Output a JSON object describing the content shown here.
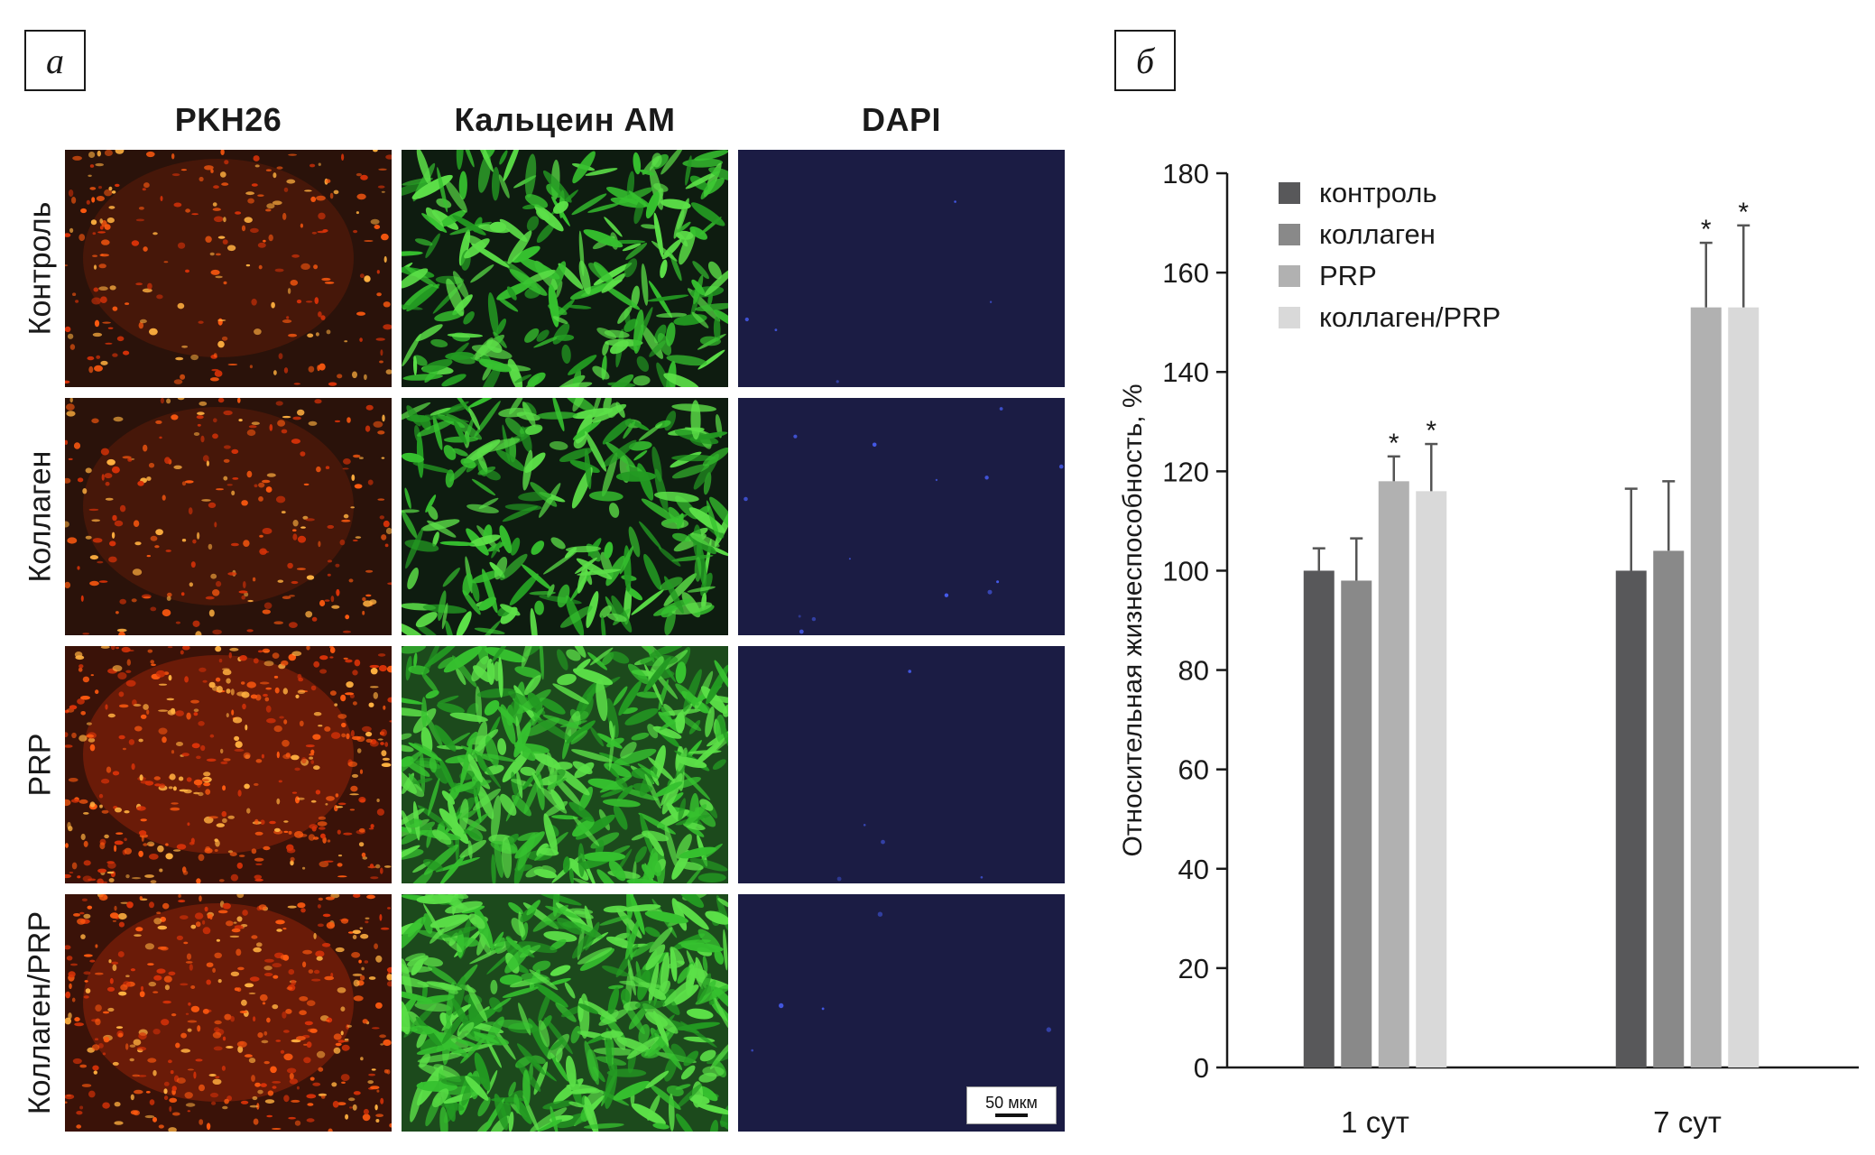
{
  "panel_a": {
    "letter": "а",
    "columns": [
      "PKH26",
      "Кальцеин АМ",
      "DAPI"
    ],
    "rows": [
      "Контроль",
      "Коллаген",
      "PRP",
      "Коллаген/PRP"
    ],
    "scale_bar": "50 мкм",
    "stain_colors": {
      "PKH26": "#ff4a12",
      "Кальцеин АМ": "#33c43a",
      "DAPI": "#1d1e4a"
    }
  },
  "panel_b": {
    "letter": "б"
  },
  "chart_data": {
    "type": "bar",
    "categories": [
      "1 сут",
      "7 сут"
    ],
    "ylabel": "Относительная жизнеспособность, %",
    "xlabel": "",
    "ylim": [
      0,
      180
    ],
    "yticks": [
      0,
      20,
      40,
      60,
      80,
      100,
      120,
      140,
      160,
      180
    ],
    "legend_position": "top-left",
    "series": [
      {
        "name": "контроль",
        "color": "#58585a",
        "values": [
          100,
          100
        ],
        "errors": [
          4.5,
          16.5
        ],
        "significant": [
          false,
          false
        ]
      },
      {
        "name": "коллаген",
        "color": "#898989",
        "values": [
          98,
          104
        ],
        "errors": [
          8.5,
          14
        ],
        "significant": [
          false,
          false
        ]
      },
      {
        "name": "PRP",
        "color": "#b1b1b1",
        "values": [
          118,
          153
        ],
        "errors": [
          5,
          13
        ],
        "significant": [
          true,
          true
        ]
      },
      {
        "name": "коллаген/PRP",
        "color": "#d9d9d9",
        "values": [
          116,
          153
        ],
        "errors": [
          9.5,
          16.5
        ],
        "significant": [
          true,
          true
        ]
      }
    ],
    "significance_marker": "*"
  }
}
